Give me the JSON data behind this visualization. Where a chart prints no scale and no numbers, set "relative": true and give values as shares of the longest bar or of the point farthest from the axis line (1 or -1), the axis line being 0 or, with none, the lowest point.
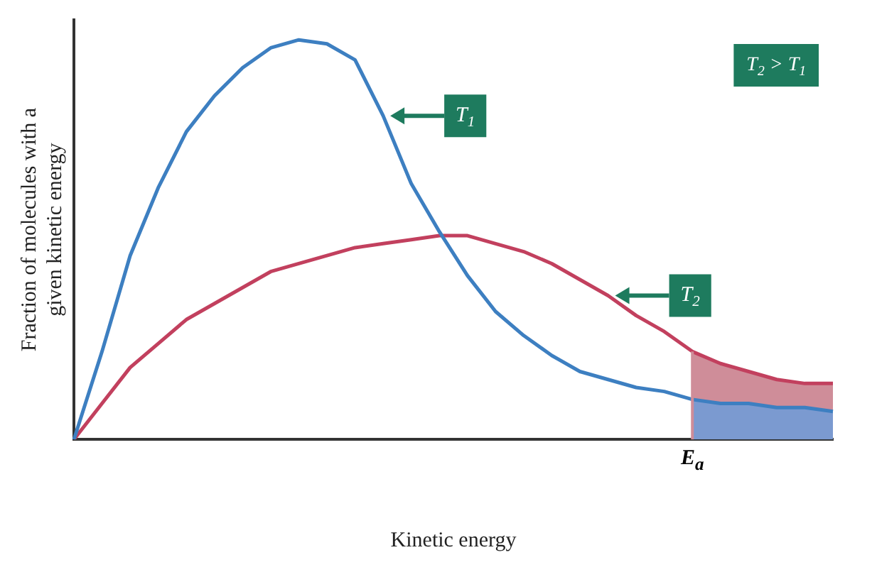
{
  "chart_data": {
    "type": "line",
    "relative": true,
    "xlabel": "Kinetic energy",
    "ylabel": "Fraction of molecules with a\ngiven kinetic energy",
    "categories": [
      null,
      null,
      null,
      null,
      null,
      null,
      null,
      null,
      null,
      null,
      null,
      null,
      null,
      null,
      null,
      null,
      null,
      null,
      null,
      null,
      null,
      null,
      null,
      null,
      null,
      null,
      null,
      null
    ],
    "series": [
      {
        "name": "T$_{1}$",
        "color": "#3d7fc1",
        "values": [
          0,
          0.22,
          0.46,
          0.63,
          0.77,
          0.86,
          0.93,
          0.98,
          1,
          0.99,
          0.95,
          0.81,
          0.64,
          0.52,
          0.41,
          0.32,
          0.26,
          0.21,
          0.17,
          0.15,
          0.13,
          0.12,
          0.1,
          0.09,
          0.09,
          0.08,
          0.08,
          0.07
        ]
      },
      {
        "name": "T$_{2}$",
        "color": "#c2405e",
        "values": [
          0,
          0.09,
          0.18,
          0.24,
          0.3,
          0.34,
          0.38,
          0.42,
          0.44,
          0.46,
          0.48,
          0.49,
          0.5,
          0.51,
          0.51,
          0.49,
          0.47,
          0.44,
          0.4,
          0.36,
          0.31,
          0.27,
          0.22,
          0.19,
          0.17,
          0.15,
          0.14,
          0.14
        ]
      },
      {
        "type": "area",
        "color": "#7b9ad0",
        "values": [
          null,
          null,
          null,
          null,
          null,
          null,
          null,
          null,
          null,
          null,
          null,
          null,
          null,
          null,
          null,
          null,
          null,
          null,
          null,
          null,
          null,
          null,
          0.1,
          0.09,
          0.09,
          0.08,
          0.08,
          0.07
        ]
      },
      {
        "type": "area",
        "color": "#cf8d99",
        "values": [
          null,
          null,
          null,
          null,
          null,
          null,
          null,
          null,
          null,
          null,
          null,
          null,
          null,
          null,
          null,
          null,
          null,
          null,
          null,
          null,
          null,
          null,
          0.22,
          0.19,
          0.17,
          0.15,
          0.14,
          0.14
        ]
      }
    ],
    "annotations": [
      "T$_{2}$ > T$_{1}$",
      "E$_{a}$"
    ],
    "grid": false,
    "legend": false,
    "marker": "none",
    "line_style": "solid"
  }
}
